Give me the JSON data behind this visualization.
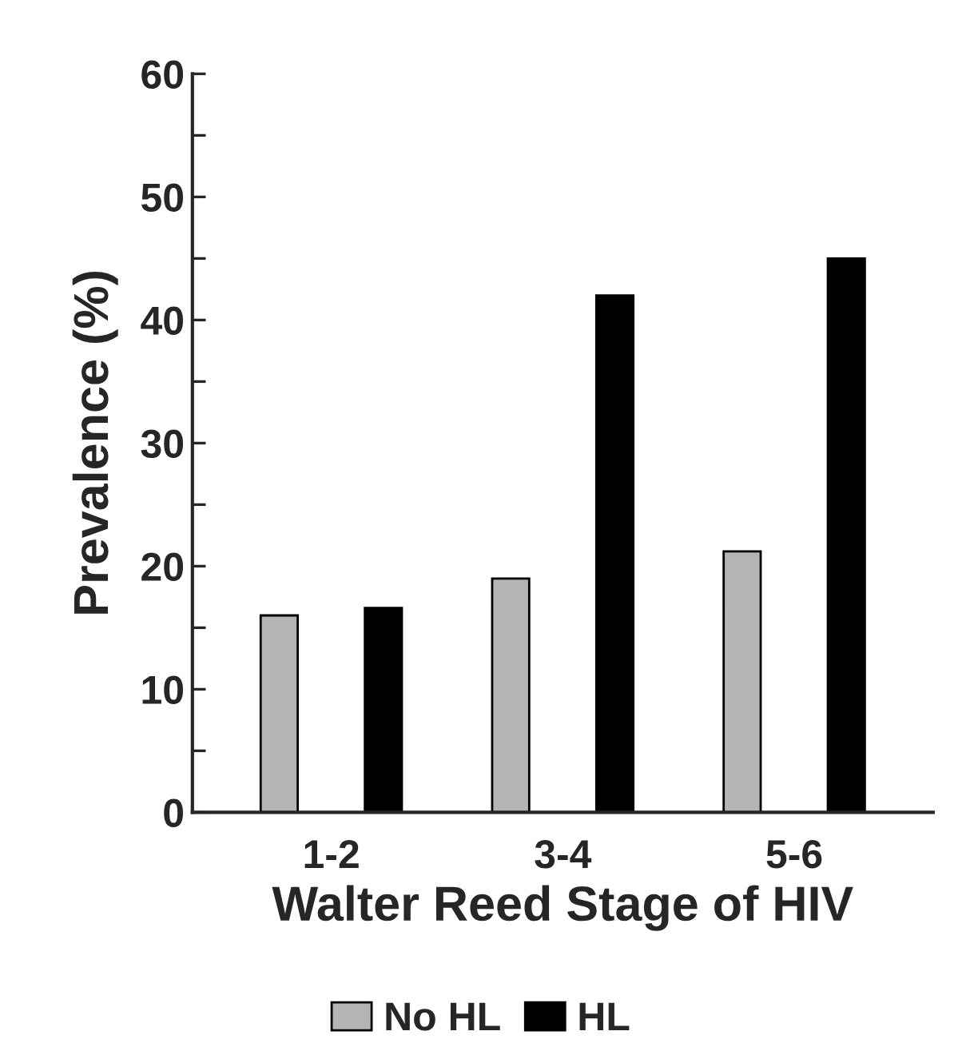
{
  "chart_data": {
    "type": "bar",
    "xlabel": "Walter Reed Stage of HIV",
    "ylabel": "Prevalence (%)",
    "categories": [
      "1-2",
      "3-4",
      "5-6"
    ],
    "series": [
      {
        "name": "No HL",
        "color": "#b4b4b4",
        "values": [
          16,
          19,
          21.2
        ]
      },
      {
        "name": "HL",
        "color": "#000000",
        "values": [
          16.6,
          42,
          45
        ]
      }
    ],
    "ylim": [
      0,
      60
    ],
    "yticks": [
      0,
      {
        "value": 5,
        "label": null
      },
      10,
      {
        "value": 15,
        "label": null
      },
      20,
      {
        "value": 25,
        "label": null
      },
      30,
      {
        "value": 35,
        "label": null
      },
      40,
      {
        "value": 45,
        "label": null
      },
      50,
      {
        "value": 55,
        "label": null
      },
      60
    ],
    "grid": false,
    "legend": "bottom"
  }
}
